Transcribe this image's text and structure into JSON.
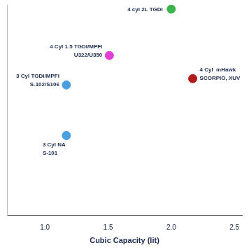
{
  "chart_data": {
    "type": "scatter",
    "x_label": "Cubic Capacity (lit)",
    "xlim": [
      0.7,
      2.56
    ],
    "xticks": [
      {
        "value": 1,
        "label": "1.0"
      },
      {
        "value": 1.5,
        "label": "1.5"
      },
      {
        "value": 2,
        "label": "2.0"
      },
      {
        "value": 2.5,
        "label": "2.5"
      }
    ],
    "ylim": [
      0,
      100
    ],
    "grid": false,
    "tick_labels": "x",
    "points": [
      {
        "label": [
          "3 Cyl NA",
          "S-101"
        ],
        "x": 1.17,
        "y": 38,
        "color": "#4a9fe0"
      },
      {
        "label": [
          "3 Cyl TGDI/MPFI",
          "S-102/S106"
        ],
        "x": 1.17,
        "y": 62,
        "color": "#4a9fe0"
      },
      {
        "label": [
          "4 Cyl 1.5 TGDI/MPFI",
          "U322/U350"
        ],
        "x": 1.51,
        "y": 76,
        "color": "#e040d4"
      },
      {
        "label": [
          "4 cyl 2L TGDI"
        ],
        "x": 2.0,
        "y": 98,
        "color": "#3cb44b"
      },
      {
        "label": [
          "4 Cyl  mHawk",
          "SCORPIO, XUV"
        ],
        "x": 2.17,
        "y": 65,
        "color": "#b01c1c"
      }
    ]
  }
}
